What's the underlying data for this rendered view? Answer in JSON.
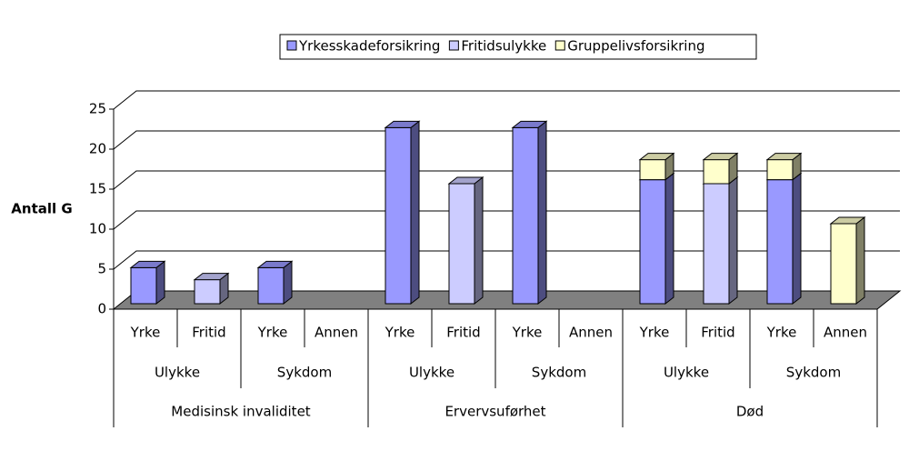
{
  "chart_data": {
    "type": "bar3d_stacked",
    "y_label": "Antall G",
    "categories": [
      "Yrke",
      "Fritid",
      "Yrke",
      "Annen",
      "Yrke",
      "Fritid",
      "Yrke",
      "Annen",
      "Yrke",
      "Fritid",
      "Yrke",
      "Annen"
    ],
    "subgroups": [
      "Ulykke",
      "Sykdom",
      "Ulykke",
      "Sykdom",
      "Ulykke",
      "Sykdom"
    ],
    "groups": [
      "Medisinsk invaliditet",
      "Ervervsuførhet",
      "Død"
    ],
    "series": [
      {
        "name": "Yrkesskadeforsikring",
        "color": "#9999ff",
        "values": [
          4.5,
          0,
          4.5,
          0,
          22,
          0,
          22,
          0,
          15.5,
          0,
          15.5,
          0
        ]
      },
      {
        "name": "Fritidsulykke",
        "color": "#ccccff",
        "values": [
          0,
          3,
          0,
          0,
          0,
          15,
          0,
          0,
          0,
          15,
          0,
          0
        ]
      },
      {
        "name": "Gruppelivsforsikring",
        "color": "#ffffcc",
        "values": [
          0,
          0,
          0,
          0,
          0,
          0,
          0,
          0,
          2.5,
          3,
          2.5,
          10
        ]
      }
    ],
    "ylim": [
      0,
      25
    ],
    "yticks": [
      0,
      5,
      10,
      15,
      20,
      25
    ],
    "grid": true,
    "legend": "top"
  }
}
